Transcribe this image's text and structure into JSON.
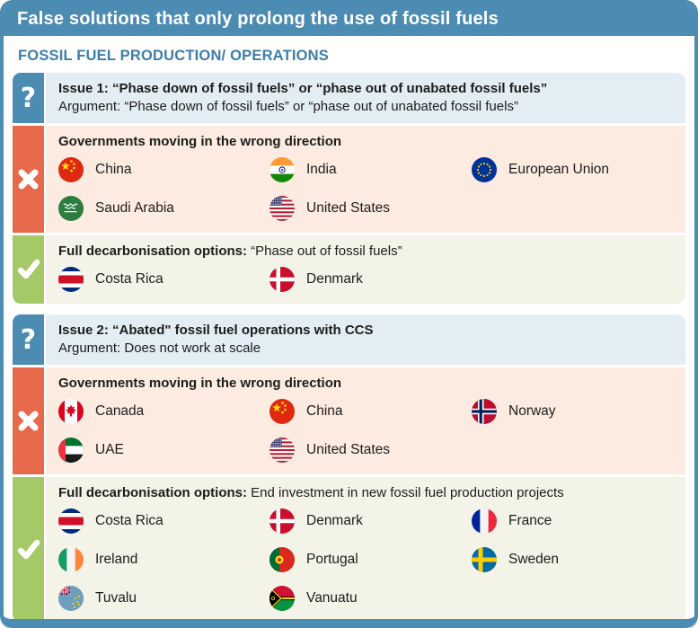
{
  "header": {
    "title": "False solutions that only prolong the use of fossil fuels"
  },
  "section": {
    "heading": "FOSSIL FUEL PRODUCTION/ OPERATIONS"
  },
  "icons": {
    "question": "?",
    "cross": "cross-icon",
    "check": "check-icon"
  },
  "colors": {
    "frame_blue": "#4C8BB2",
    "issue_bg": "#E3EDF4",
    "wrong_accent": "#E7694B",
    "wrong_bg": "#FCEBE1",
    "good_accent": "#A6C967",
    "good_bg": "#F4F3E8",
    "section_heading_text": "#3C7EA8"
  },
  "issues": [
    {
      "title": "Issue 1: “Phase down of fossil fuels” or “phase out of unabated fossil fuels”",
      "argument": "Argument: “Phase down of fossil fuels” or “phase out of unabated fossil fuels”",
      "wrong": {
        "heading": "Governments moving in the wrong direction",
        "countries": [
          {
            "name": "China",
            "flag": "cn"
          },
          {
            "name": "India",
            "flag": "in"
          },
          {
            "name": "European Union",
            "flag": "eu"
          },
          {
            "name": "Saudi Arabia",
            "flag": "sa"
          },
          {
            "name": "United States",
            "flag": "us"
          }
        ]
      },
      "good": {
        "heading_bold": "Full decarbonisation options:",
        "heading_rest": " “Phase out of fossil fuels”",
        "countries": [
          {
            "name": "Costa Rica",
            "flag": "cr"
          },
          {
            "name": "Denmark",
            "flag": "dk"
          }
        ]
      }
    },
    {
      "title": "Issue 2: “Abated\" fossil fuel operations with CCS",
      "argument": "Argument: Does not work at scale",
      "wrong": {
        "heading": "Governments moving in the wrong direction",
        "countries": [
          {
            "name": "Canada",
            "flag": "ca"
          },
          {
            "name": "China",
            "flag": "cn"
          },
          {
            "name": "Norway",
            "flag": "no"
          },
          {
            "name": "UAE",
            "flag": "ae"
          },
          {
            "name": "United States",
            "flag": "us"
          }
        ]
      },
      "good": {
        "heading_bold": "Full decarbonisation options:",
        "heading_rest": " End investment in new fossil fuel production projects",
        "countries": [
          {
            "name": "Costa Rica",
            "flag": "cr"
          },
          {
            "name": "Denmark",
            "flag": "dk"
          },
          {
            "name": "France",
            "flag": "fr"
          },
          {
            "name": "Ireland",
            "flag": "ie"
          },
          {
            "name": "Portugal",
            "flag": "pt"
          },
          {
            "name": "Sweden",
            "flag": "se"
          },
          {
            "name": "Tuvalu",
            "flag": "tv"
          },
          {
            "name": "Vanuatu",
            "flag": "vu"
          }
        ]
      }
    }
  ]
}
